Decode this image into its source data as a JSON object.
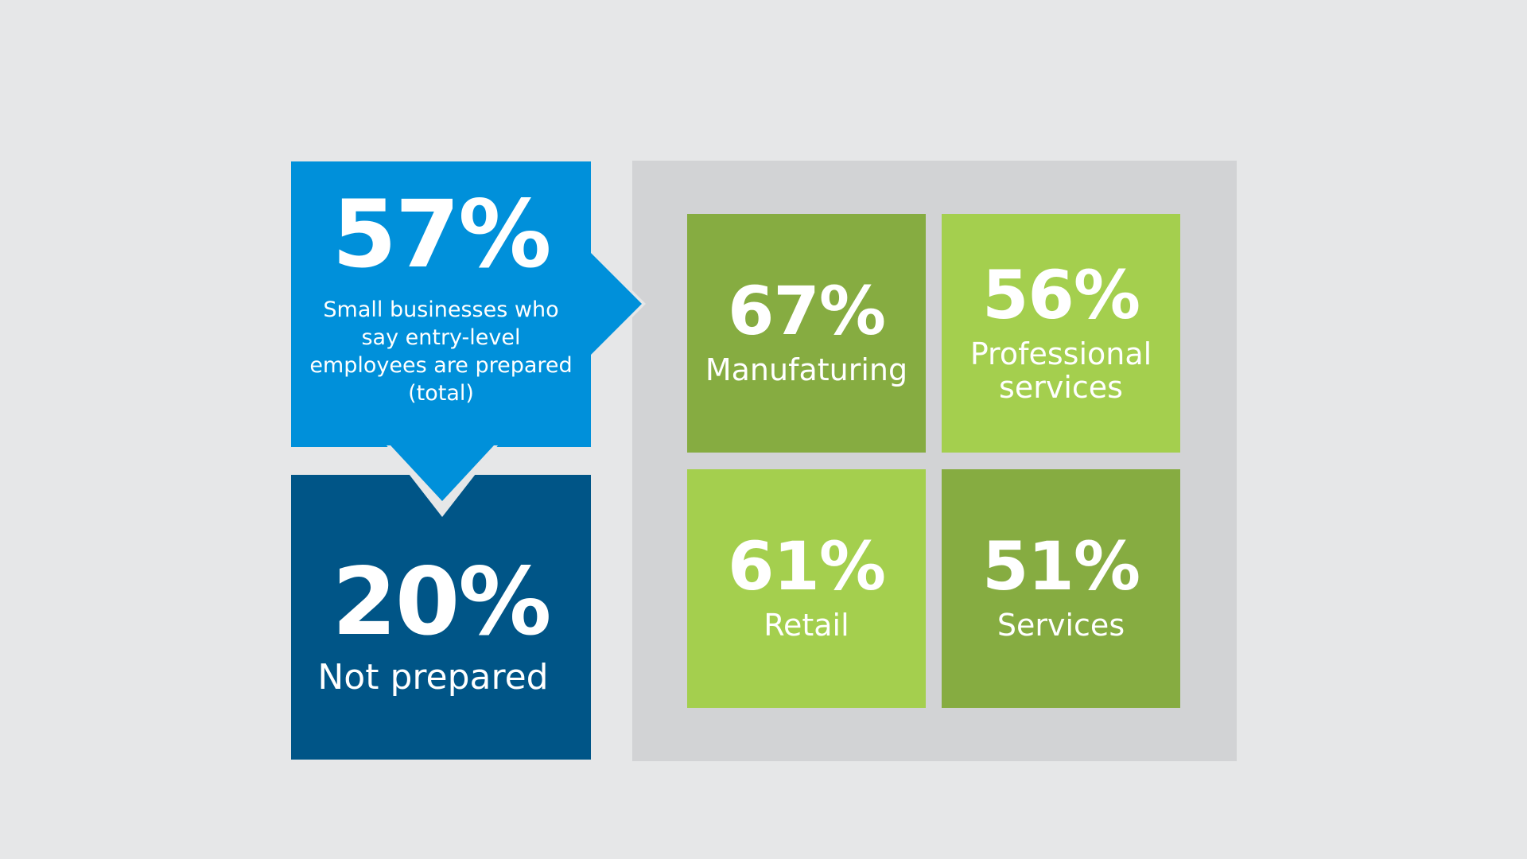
{
  "colors": {
    "background": "#e6e7e8",
    "panel": "#d2d3d5",
    "total_blue": "#0090da",
    "not_prepared_blue": "#005587",
    "dark_green": "#86ac41",
    "light_green": "#a4cf4e",
    "text": "#ffffff"
  },
  "total": {
    "value": "57%",
    "description": "Small businesses who say entry-level employees are prepared (total)"
  },
  "not_prepared": {
    "value": "20%",
    "label": "Not prepared"
  },
  "sectors": [
    {
      "value": "67%",
      "label": "Manufaturing",
      "color": "#86ac41"
    },
    {
      "value": "56%",
      "label": "Professional services",
      "color": "#a4cf4e"
    },
    {
      "value": "61%",
      "label": "Retail",
      "color": "#a4cf4e"
    },
    {
      "value": "51%",
      "label": "Services",
      "color": "#86ac41"
    }
  ]
}
